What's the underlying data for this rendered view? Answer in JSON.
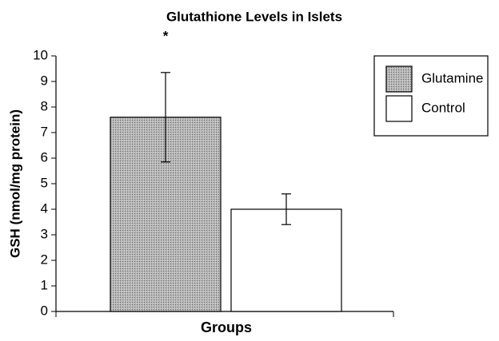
{
  "chart_data": {
    "type": "bar",
    "title": "Glutathione Levels in Islets",
    "annotation": "*",
    "x_label": "Groups",
    "y_label": "GSH (nmol/mg protein)",
    "categories": [
      null
    ],
    "series": [
      {
        "name": "Glutamine",
        "color": "#b4b4b4",
        "pattern": "stipple",
        "values": [
          7.6
        ],
        "errors": [
          1.75
        ]
      },
      {
        "name": "Control",
        "color": "#ffffff",
        "values": [
          4.0
        ],
        "errors": [
          0.6
        ]
      }
    ],
    "ylim": [
      0,
      10
    ],
    "yticks": [
      0,
      1,
      2,
      3,
      4,
      5,
      6,
      7,
      8,
      9,
      10
    ],
    "legend": "top-right",
    "grid": false
  }
}
